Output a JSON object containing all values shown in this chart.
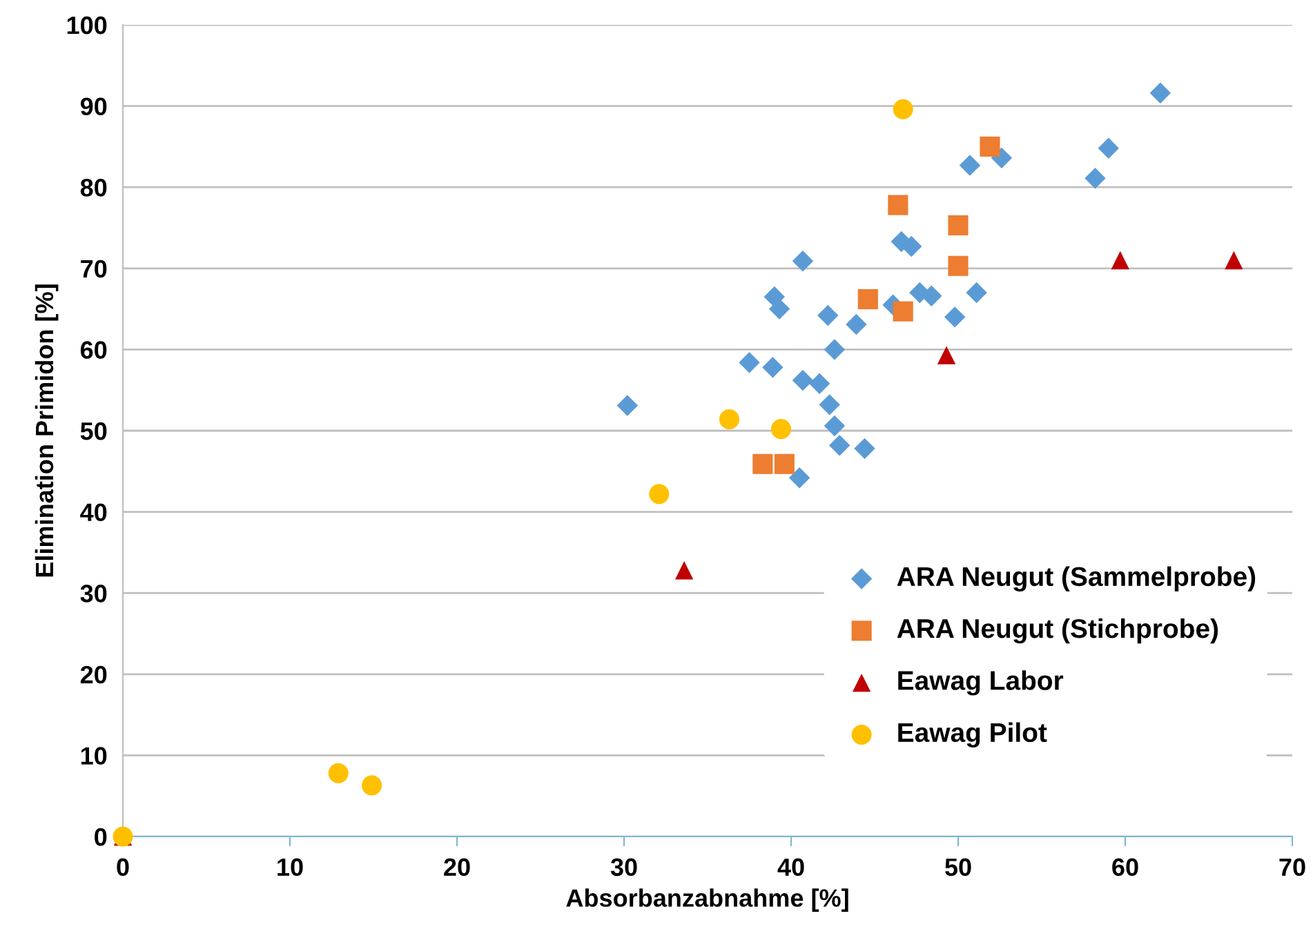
{
  "chart_data": {
    "type": "scatter",
    "xlabel": "Absorbanzabnahme [%]",
    "ylabel": "Elimination Primidon [%]",
    "xlim": [
      0,
      70
    ],
    "xticks": [
      0,
      10,
      20,
      30,
      40,
      50,
      60,
      70
    ],
    "ylim": [
      0,
      100
    ],
    "yticks": [
      0,
      10,
      20,
      30,
      40,
      50,
      60,
      70,
      80,
      90,
      100
    ],
    "grid": "y",
    "legend": "bottom right",
    "series": [
      {
        "name": "ARA Neugut (Sammelprobe)",
        "color": "#5b9bd5",
        "marker": "diamond",
        "x": [
          62.1,
          52.6,
          50.7,
          59.0,
          58.2,
          46.6,
          47.2,
          40.7,
          39.0,
          39.3,
          46.1,
          47.7,
          48.4,
          51.1,
          49.8,
          42.2,
          43.9,
          42.6,
          37.5,
          38.9,
          40.7,
          41.7,
          30.2,
          42.3,
          42.6,
          42.9,
          44.4,
          40.5
        ],
        "values": [
          91.6,
          83.6,
          82.7,
          84.8,
          81.1,
          73.3,
          72.7,
          70.9,
          66.5,
          65.0,
          65.5,
          67.0,
          66.6,
          67.0,
          64.0,
          64.2,
          63.1,
          60.0,
          58.4,
          57.8,
          56.2,
          55.8,
          53.1,
          53.2,
          50.6,
          48.2,
          47.8,
          44.2
        ]
      },
      {
        "name": "ARA Neugut (Stichprobe)",
        "color": "#ed7d31",
        "marker": "square",
        "x": [
          51.9,
          46.4,
          50.0,
          50.0,
          44.6,
          46.7,
          38.3,
          39.6
        ],
        "values": [
          85.0,
          77.8,
          75.3,
          70.3,
          66.2,
          64.7,
          45.9,
          45.9
        ]
      },
      {
        "name": "Eawag Labor",
        "color": "#c00000",
        "marker": "triangle",
        "x": [
          0,
          33.6,
          49.3,
          59.7,
          66.5
        ],
        "values": [
          0,
          32.8,
          59.3,
          71.0,
          71.0
        ]
      },
      {
        "name": "Eawag Pilot",
        "color": "#ffc000",
        "marker": "circle",
        "x": [
          0,
          12.9,
          14.9,
          32.1,
          36.3,
          39.4,
          46.7
        ],
        "values": [
          0,
          7.8,
          6.3,
          42.2,
          51.4,
          50.2,
          89.6
        ]
      }
    ]
  }
}
